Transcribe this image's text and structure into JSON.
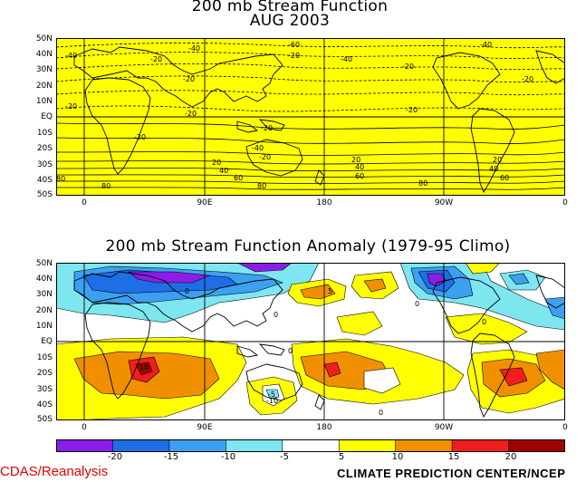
{
  "top_map": {
    "title_line1": "200 mb Stream Function",
    "title_line2": "AUG 2003",
    "fill_color": "#ffff00",
    "lat_labels": [
      "50N",
      "40N",
      "30N",
      "20N",
      "10N",
      "EQ",
      "10S",
      "20S",
      "30S",
      "40S",
      "50S"
    ],
    "lon_labels": [
      "0",
      "90E",
      "180",
      "90W",
      "0"
    ],
    "contour_labels": [
      "-40",
      "-40",
      "-60",
      "-40",
      "-40",
      "-20",
      "-20",
      "-20",
      "-20",
      "-20",
      "-20",
      "-20",
      "-20",
      "-20",
      "-20",
      "20",
      "40",
      "60",
      "80",
      "80",
      "20",
      "40",
      "60",
      "80",
      "20",
      "40",
      "60",
      "80",
      "-20",
      "-40"
    ]
  },
  "bottom_map": {
    "title": "200 mb Stream Function Anomaly (1979-95 Climo)",
    "lat_labels": [
      "50N",
      "40N",
      "30N",
      "20N",
      "10N",
      "EQ",
      "10S",
      "20S",
      "30S",
      "40S",
      "50S"
    ],
    "lon_labels": [
      "0",
      "90E",
      "180",
      "90W",
      "0"
    ],
    "contour_labels": [
      "0",
      "0",
      "0",
      "0",
      "0",
      "-5",
      "-10",
      "0",
      "5",
      "10"
    ]
  },
  "colorbar": {
    "labels": [
      "-20",
      "-15",
      "-10",
      "-5",
      "5",
      "10",
      "15",
      "20"
    ],
    "colors": [
      "#8b1ee6",
      "#1e6ee6",
      "#3ca0f0",
      "#7de6f0",
      "#ffffff",
      "#ffff00",
      "#f09000",
      "#f01e1e",
      "#a00000"
    ]
  },
  "footer": {
    "left": "CDAS/Reanalysis",
    "right": "CLIMATE PREDICTION CENTER/NCEP"
  }
}
